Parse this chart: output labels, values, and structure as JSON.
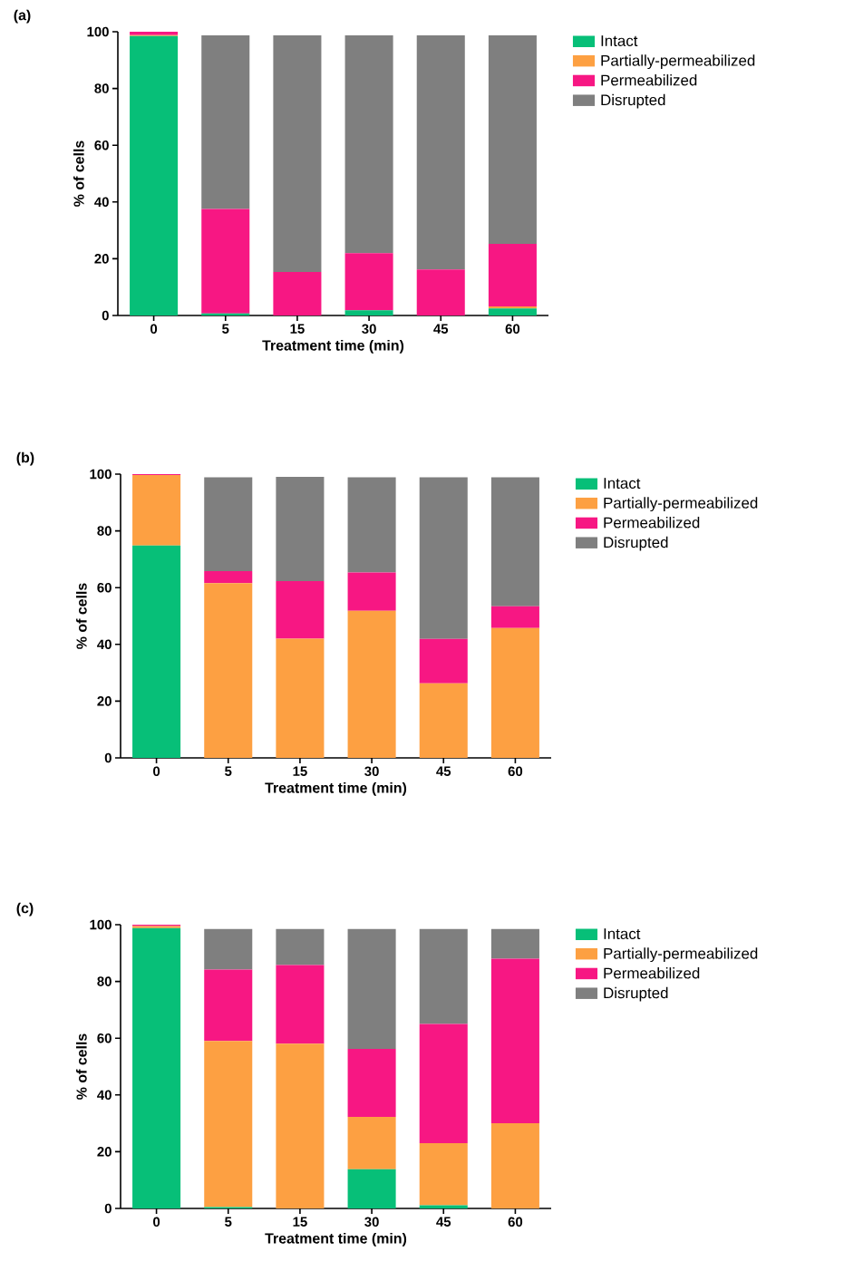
{
  "chart_data": [
    {
      "type": "bar",
      "title": "(a)",
      "xlabel": "Treatment time (min)",
      "ylabel": "% of cells",
      "categories": [
        "0",
        "5",
        "15",
        "30",
        "45",
        "60"
      ],
      "stacked": true,
      "ylim": [
        0,
        100
      ],
      "yticks": [
        0,
        20,
        40,
        60,
        80,
        100
      ],
      "legend": "right",
      "series": [
        {
          "name": "Intact",
          "color": "#07bf78",
          "values": [
            98.5,
            0.7,
            0,
            1.8,
            0,
            2.5
          ]
        },
        {
          "name": "Partially-permeabilized",
          "color": "#fda042",
          "values": [
            0.3,
            0,
            0,
            0,
            0,
            0.7
          ]
        },
        {
          "name": "Permeabilized",
          "color": "#f71783",
          "values": [
            1.2,
            36.8,
            15.3,
            20.2,
            16.2,
            22
          ]
        },
        {
          "name": "Disrupted",
          "color": "#7f7f7f",
          "values": [
            0,
            61.2,
            83.4,
            76.7,
            82.5,
            73.5
          ]
        }
      ]
    },
    {
      "type": "bar",
      "title": "(b)",
      "xlabel": "Treatment time (min)",
      "ylabel": "% of cells",
      "categories": [
        "0",
        "5",
        "15",
        "30",
        "45",
        "60"
      ],
      "stacked": true,
      "ylim": [
        0,
        100
      ],
      "yticks": [
        0,
        20,
        40,
        60,
        80,
        100
      ],
      "legend": "right",
      "series": [
        {
          "name": "Intact",
          "color": "#07bf78",
          "values": [
            74.8,
            0,
            0,
            0,
            0,
            0
          ]
        },
        {
          "name": "Partially-permeabilized",
          "color": "#fda042",
          "values": [
            24.9,
            61.6,
            42,
            51.8,
            26.3,
            45.8
          ]
        },
        {
          "name": "Permeabilized",
          "color": "#f71783",
          "values": [
            0.3,
            4.2,
            20.3,
            13.5,
            15.6,
            7.6
          ]
        },
        {
          "name": "Disrupted",
          "color": "#7f7f7f",
          "values": [
            0,
            33.1,
            36.7,
            33.6,
            57,
            45.5
          ]
        }
      ]
    },
    {
      "type": "bar",
      "title": "(c)",
      "xlabel": "Treatment time (min)",
      "ylabel": "% of cells",
      "categories": [
        "0",
        "5",
        "15",
        "30",
        "45",
        "60"
      ],
      "stacked": true,
      "ylim": [
        0,
        100
      ],
      "yticks": [
        0,
        20,
        40,
        60,
        80,
        100
      ],
      "legend": "right",
      "series": [
        {
          "name": "Intact",
          "color": "#07bf78",
          "values": [
            98.8,
            0.5,
            0,
            13.8,
            1.1,
            0
          ]
        },
        {
          "name": "Partially-permeabilized",
          "color": "#fda042",
          "values": [
            0.7,
            58.5,
            58.1,
            18.5,
            21.9,
            30
          ]
        },
        {
          "name": "Permeabilized",
          "color": "#f71783",
          "values": [
            0.5,
            25.2,
            27.7,
            23.9,
            42,
            58
          ]
        },
        {
          "name": "Disrupted",
          "color": "#7f7f7f",
          "values": [
            0,
            14.3,
            12.7,
            42.3,
            33.5,
            10.5
          ]
        }
      ]
    }
  ]
}
